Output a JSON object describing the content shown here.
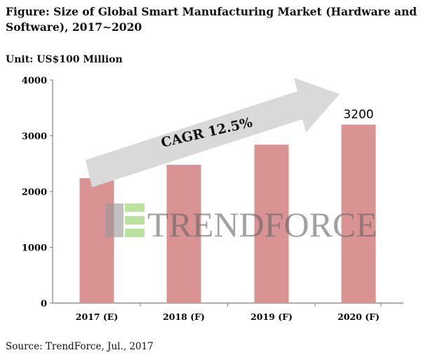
{
  "title": "Figure: Size of Global Smart Manufacturing Market (Hardware and Software), 2017~2020",
  "unit": "Unit: US$100 Million",
  "source": "Source: TrendForce, Jul., 2017",
  "watermark": "TRENDFORCE",
  "colors": {
    "bar": "#d99393",
    "arrow": "#d9d9d9",
    "axis": "#7f7f7f"
  },
  "chart_data": {
    "type": "bar",
    "title": "Size of Global Smart Manufacturing Market (Hardware and Software), 2017~2020",
    "ylabel": "US$100 Million",
    "categories": [
      "2017 (E)",
      "2018 (F)",
      "2019 (F)",
      "2020 (F)"
    ],
    "values": [
      2240,
      2480,
      2840,
      3200
    ],
    "data_labels": {
      "3": "3200"
    },
    "ylim": [
      0,
      4000
    ],
    "yticks": [
      "0",
      "1000",
      "2000",
      "3000",
      "4000"
    ],
    "annotation": "CAGR 12.5%",
    "grid": false,
    "legend": "none"
  }
}
